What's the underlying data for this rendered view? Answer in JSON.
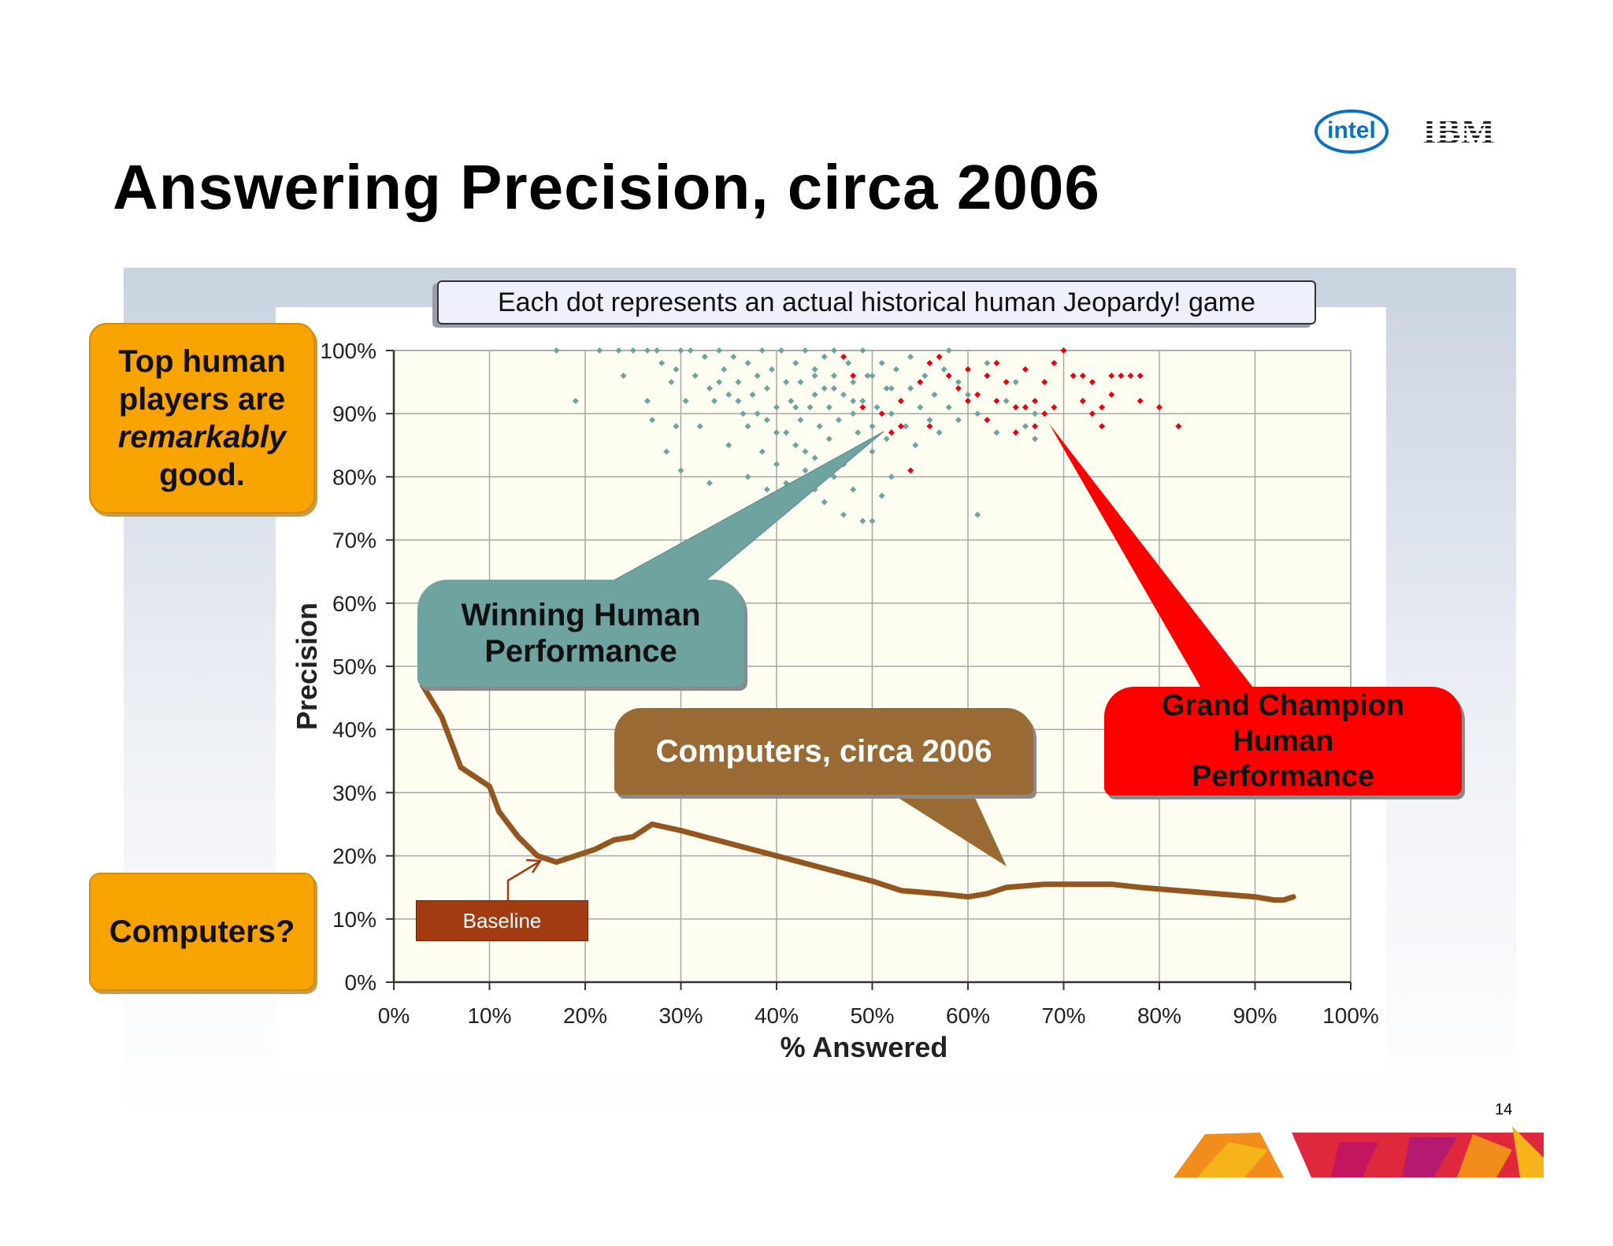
{
  "slide": {
    "title": "Answering Precision, circa 2006",
    "page_number": "14",
    "logos": [
      "intel",
      "IBM"
    ]
  },
  "logos": {
    "intel_text": "intel",
    "ibm_text": "IBM"
  },
  "annotations": {
    "top_human": [
      "Top human",
      "players are",
      "remarkably",
      "good."
    ],
    "computers_question": "Computers?",
    "dot_caption": "Each dot represents an actual historical human Jeopardy! game",
    "winning_human": [
      "Winning Human",
      "Performance"
    ],
    "computers_2006": "Computers, circa 2006",
    "grand_champion": [
      "Grand Champion",
      "Human",
      "Performance"
    ],
    "baseline": "Baseline"
  },
  "colors": {
    "winning_dots": "#6ea3a0",
    "champion_dots": "#e8000f",
    "baseline_line": "#94561e",
    "accent_orange": "#f7a400",
    "plot_background": "#fdfdf2"
  },
  "chart_data": {
    "type": "scatter",
    "title": "",
    "xlabel": "% Answered",
    "ylabel": "Precision",
    "xlim": [
      0,
      100
    ],
    "ylim": [
      0,
      100
    ],
    "x_ticks": [
      "0%",
      "10%",
      "20%",
      "30%",
      "40%",
      "50%",
      "60%",
      "70%",
      "80%",
      "90%",
      "100%"
    ],
    "y_ticks": [
      "0%",
      "10%",
      "20%",
      "30%",
      "40%",
      "50%",
      "60%",
      "70%",
      "80%",
      "90%",
      "100%"
    ],
    "grid": true,
    "series": [
      {
        "kind": "scatter",
        "color": "#6ea3a0",
        "points": [
          [
            17,
            100
          ],
          [
            19,
            92
          ],
          [
            21.5,
            100
          ],
          [
            23.5,
            100
          ],
          [
            24,
            96
          ],
          [
            25,
            100
          ],
          [
            26.5,
            100
          ],
          [
            26.5,
            92
          ],
          [
            27,
            89
          ],
          [
            27.5,
            100
          ],
          [
            28,
            98
          ],
          [
            28.5,
            84
          ],
          [
            29,
            95
          ],
          [
            29.5,
            97
          ],
          [
            29.5,
            88
          ],
          [
            30,
            100
          ],
          [
            30,
            81
          ],
          [
            30.5,
            92
          ],
          [
            31,
            100
          ],
          [
            31.5,
            96
          ],
          [
            32,
            88
          ],
          [
            32.5,
            99
          ],
          [
            33,
            94
          ],
          [
            33,
            79
          ],
          [
            33.5,
            92
          ],
          [
            34,
            100
          ],
          [
            34.5,
            97
          ],
          [
            35,
            85
          ],
          [
            35,
            93
          ],
          [
            35.5,
            99
          ],
          [
            36,
            95
          ],
          [
            36.5,
            90
          ],
          [
            37,
            88
          ],
          [
            37,
            98
          ],
          [
            37.5,
            93
          ],
          [
            38,
            96
          ],
          [
            38.5,
            100
          ],
          [
            38.5,
            84
          ],
          [
            39,
            89
          ],
          [
            39,
            94
          ],
          [
            39.5,
            97
          ],
          [
            40,
            91
          ],
          [
            40,
            82
          ],
          [
            40.5,
            100
          ],
          [
            41,
            95
          ],
          [
            41,
            87
          ],
          [
            41.5,
            92
          ],
          [
            42,
            98
          ],
          [
            42.5,
            89
          ],
          [
            42.5,
            95
          ],
          [
            43,
            100
          ],
          [
            43,
            84
          ],
          [
            43.5,
            91
          ],
          [
            44,
            97
          ],
          [
            44,
            93
          ],
          [
            44.5,
            88
          ],
          [
            45,
            99
          ],
          [
            45,
            94
          ],
          [
            45.5,
            86
          ],
          [
            45.5,
            91
          ],
          [
            46,
            100
          ],
          [
            46,
            96
          ],
          [
            46.5,
            89
          ],
          [
            47,
            93
          ],
          [
            47,
            82
          ],
          [
            47.5,
            98
          ],
          [
            48,
            90
          ],
          [
            48,
            95
          ],
          [
            48.5,
            87
          ],
          [
            49,
            100
          ],
          [
            49,
            92
          ],
          [
            49.5,
            96
          ],
          [
            50,
            88
          ],
          [
            50,
            84
          ],
          [
            50.5,
            91
          ],
          [
            51,
            98
          ],
          [
            51.5,
            94
          ],
          [
            51.5,
            86
          ],
          [
            52,
            90
          ],
          [
            52.5,
            97
          ],
          [
            53,
            92
          ],
          [
            53.5,
            88
          ],
          [
            54,
            99
          ],
          [
            54,
            94
          ],
          [
            54.5,
            85
          ],
          [
            55,
            91
          ],
          [
            55.5,
            96
          ],
          [
            56,
            89
          ],
          [
            56.5,
            93
          ],
          [
            57,
            87
          ],
          [
            57.5,
            97
          ],
          [
            58,
            91
          ],
          [
            58,
            100
          ],
          [
            59,
            95
          ],
          [
            59,
            89
          ],
          [
            60,
            93
          ],
          [
            61,
            90
          ],
          [
            61,
            74
          ],
          [
            62,
            98
          ],
          [
            63,
            87
          ],
          [
            64,
            92
          ],
          [
            65,
            95
          ],
          [
            66,
            88
          ],
          [
            67,
            90
          ],
          [
            67,
            86
          ],
          [
            45,
            76
          ],
          [
            47,
            74
          ],
          [
            49,
            73
          ],
          [
            51,
            77
          ],
          [
            50,
            73
          ],
          [
            37,
            80
          ],
          [
            39,
            78
          ],
          [
            41,
            79
          ],
          [
            43,
            81
          ],
          [
            44,
            78
          ],
          [
            46,
            80
          ],
          [
            48,
            78
          ],
          [
            52,
            80
          ],
          [
            34,
            95
          ],
          [
            36,
            92
          ],
          [
            38,
            90
          ],
          [
            42,
            91
          ],
          [
            44,
            96
          ],
          [
            46,
            94
          ],
          [
            48,
            92
          ],
          [
            50,
            96
          ],
          [
            52,
            94
          ],
          [
            40,
            87
          ],
          [
            42,
            85
          ],
          [
            44,
            83
          ]
        ]
      },
      {
        "kind": "scatter",
        "color": "#e8000f",
        "points": [
          [
            47,
            99
          ],
          [
            48,
            96
          ],
          [
            49,
            91
          ],
          [
            51,
            90
          ],
          [
            52,
            87
          ],
          [
            53,
            92
          ],
          [
            53,
            88
          ],
          [
            54,
            81
          ],
          [
            55,
            95
          ],
          [
            56,
            88
          ],
          [
            56,
            98
          ],
          [
            57,
            99
          ],
          [
            58,
            96
          ],
          [
            59,
            94
          ],
          [
            60,
            97
          ],
          [
            61,
            93
          ],
          [
            62,
            96
          ],
          [
            62,
            89
          ],
          [
            63,
            92
          ],
          [
            63,
            98
          ],
          [
            64,
            95
          ],
          [
            65,
            91
          ],
          [
            65,
            87
          ],
          [
            66,
            97
          ],
          [
            67,
            92
          ],
          [
            67,
            88
          ],
          [
            68,
            95
          ],
          [
            69,
            98
          ],
          [
            69,
            91
          ],
          [
            70,
            100
          ],
          [
            71,
            96
          ],
          [
            72,
            92
          ],
          [
            72,
            96
          ],
          [
            73,
            95
          ],
          [
            73,
            90
          ],
          [
            74,
            91
          ],
          [
            75,
            96
          ],
          [
            75,
            93
          ],
          [
            76,
            96
          ],
          [
            77,
            96
          ],
          [
            78,
            96
          ],
          [
            80,
            91
          ],
          [
            82,
            88
          ],
          [
            78,
            92
          ],
          [
            74,
            88
          ],
          [
            68,
            90
          ],
          [
            66,
            91
          ],
          [
            60,
            92
          ]
        ]
      },
      {
        "kind": "line",
        "color": "#94561e",
        "points": [
          [
            3,
            47
          ],
          [
            5,
            42
          ],
          [
            7,
            34
          ],
          [
            8,
            33
          ],
          [
            10,
            31
          ],
          [
            11,
            27
          ],
          [
            13,
            23
          ],
          [
            15,
            20
          ],
          [
            17,
            19
          ],
          [
            19,
            20
          ],
          [
            21,
            21
          ],
          [
            23,
            22.5
          ],
          [
            25,
            23
          ],
          [
            27,
            25
          ],
          [
            30,
            24
          ],
          [
            35,
            22
          ],
          [
            40,
            20
          ],
          [
            45,
            18
          ],
          [
            50,
            16
          ],
          [
            53,
            14.5
          ],
          [
            57,
            14
          ],
          [
            60,
            13.5
          ],
          [
            62,
            14
          ],
          [
            64,
            15
          ],
          [
            68,
            15.5
          ],
          [
            72,
            15.5
          ],
          [
            75,
            15.5
          ],
          [
            78,
            15
          ],
          [
            82,
            14.5
          ],
          [
            86,
            14
          ],
          [
            90,
            13.5
          ],
          [
            92,
            13
          ],
          [
            93,
            13
          ],
          [
            94,
            13.5
          ]
        ]
      }
    ]
  }
}
